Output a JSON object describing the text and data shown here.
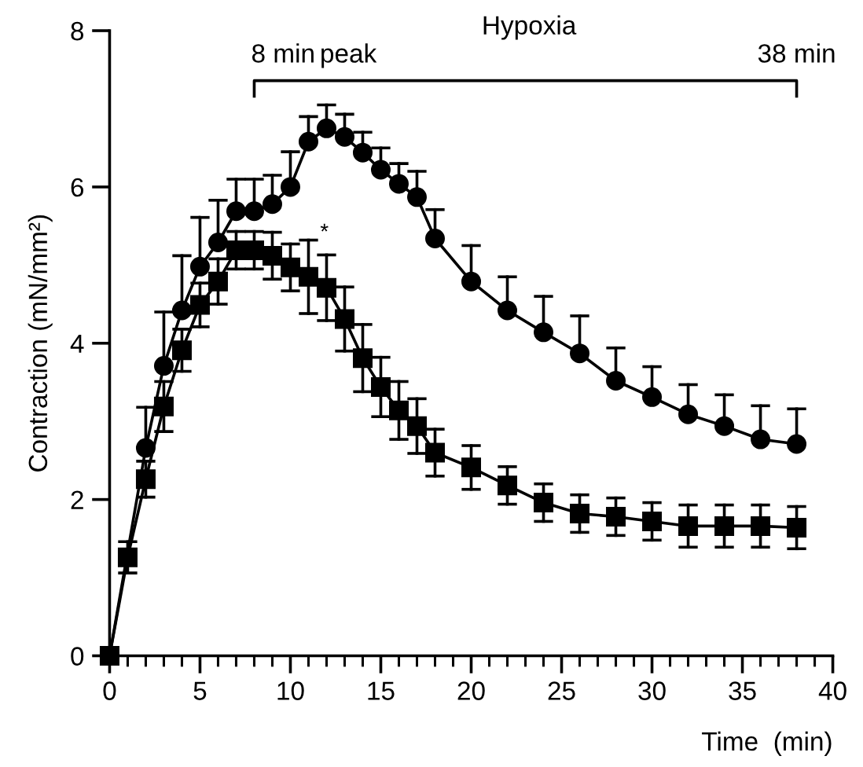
{
  "chart_data": {
    "type": "line",
    "xlabel": "Time  (min)",
    "ylabel": "Contraction (mN/mm²)",
    "xlim": [
      0,
      40
    ],
    "ylim": [
      0,
      8
    ],
    "xticks": [
      0,
      {
        "value": 1,
        "label": null
      },
      {
        "value": 2,
        "label": null
      },
      {
        "value": 3,
        "label": null
      },
      {
        "value": 4,
        "label": null
      },
      5,
      {
        "value": 6,
        "label": null
      },
      {
        "value": 7,
        "label": null
      },
      {
        "value": 8,
        "label": null
      },
      {
        "value": 9,
        "label": null
      },
      10,
      {
        "value": 11,
        "label": null
      },
      {
        "value": 12,
        "label": null
      },
      {
        "value": 13,
        "label": null
      },
      {
        "value": 14,
        "label": null
      },
      15,
      {
        "value": 16,
        "label": null
      },
      {
        "value": 17,
        "label": null
      },
      {
        "value": 18,
        "label": null
      },
      {
        "value": 19,
        "label": null
      },
      20,
      {
        "value": 21,
        "label": null
      },
      {
        "value": 22,
        "label": null
      },
      {
        "value": 23,
        "label": null
      },
      {
        "value": 24,
        "label": null
      },
      25,
      {
        "value": 26,
        "label": null
      },
      {
        "value": 27,
        "label": null
      },
      {
        "value": 28,
        "label": null
      },
      {
        "value": 29,
        "label": null
      },
      30,
      {
        "value": 31,
        "label": null
      },
      {
        "value": 32,
        "label": null
      },
      {
        "value": 33,
        "label": null
      },
      {
        "value": 34,
        "label": null
      },
      35,
      {
        "value": 36,
        "label": null
      },
      {
        "value": 37,
        "label": null
      },
      {
        "value": 38,
        "label": null
      },
      {
        "value": 39,
        "label": null
      },
      40
    ],
    "yticks": [
      0,
      2,
      4,
      6,
      8
    ],
    "grid": false,
    "series": [
      {
        "color": "#000000",
        "marker": "circle",
        "x": [
          0,
          2,
          3,
          4,
          5,
          6,
          7,
          8,
          9,
          10,
          11,
          12,
          13,
          14,
          15,
          16,
          17,
          18,
          20,
          22,
          24,
          26,
          28,
          30,
          32,
          34,
          36,
          38
        ],
        "values": [
          0,
          2.66,
          3.71,
          4.42,
          4.98,
          5.29,
          5.69,
          5.69,
          5.78,
          6.0,
          6.58,
          6.75,
          6.64,
          6.44,
          6.22,
          6.04,
          5.87,
          5.34,
          4.79,
          4.42,
          4.14,
          3.87,
          3.52,
          3.31,
          3.09,
          2.94,
          2.77,
          2.71
        ],
        "errors": [
          null,
          [
            2.66,
            3.18
          ],
          [
            3.71,
            4.4
          ],
          [
            4.42,
            5.12
          ],
          [
            4.98,
            5.61
          ],
          [
            5.29,
            5.83
          ],
          [
            5.69,
            6.1
          ],
          [
            5.69,
            6.1
          ],
          [
            5.78,
            6.15
          ],
          [
            6.0,
            6.45
          ],
          [
            6.58,
            6.9
          ],
          [
            6.75,
            7.05
          ],
          [
            6.64,
            6.93
          ],
          [
            6.44,
            6.7
          ],
          [
            6.22,
            6.5
          ],
          [
            6.04,
            6.3
          ],
          [
            5.87,
            6.2
          ],
          [
            5.34,
            5.71
          ],
          [
            4.79,
            5.25
          ],
          [
            4.42,
            4.85
          ],
          [
            4.14,
            4.6
          ],
          [
            3.87,
            4.35
          ],
          [
            3.52,
            3.94
          ],
          [
            3.31,
            3.7
          ],
          [
            3.09,
            3.47
          ],
          [
            2.94,
            3.34
          ],
          [
            2.77,
            3.2
          ],
          [
            2.71,
            3.16
          ]
        ]
      },
      {
        "color": "#000000",
        "marker": "square",
        "x": [
          0,
          1,
          2,
          3,
          4,
          5,
          6,
          7,
          8,
          9,
          10,
          11,
          12,
          13,
          14,
          15,
          16,
          17,
          18,
          20,
          22,
          24,
          26,
          28,
          30,
          32,
          34,
          36,
          38
        ],
        "values": [
          0,
          1.26,
          2.26,
          3.19,
          3.91,
          4.49,
          4.79,
          5.19,
          5.19,
          5.12,
          4.97,
          4.85,
          4.71,
          4.31,
          3.81,
          3.44,
          3.14,
          2.94,
          2.6,
          2.41,
          2.18,
          1.96,
          1.82,
          1.78,
          1.72,
          1.66,
          1.66,
          1.66,
          1.64
        ],
        "errors": [
          null,
          0.2,
          0.23,
          0.32,
          0.27,
          0.28,
          0.29,
          0.24,
          0.24,
          0.3,
          0.3,
          0.47,
          0.42,
          0.41,
          0.43,
          0.38,
          0.37,
          0.35,
          0.3,
          0.28,
          0.24,
          0.24,
          0.24,
          0.24,
          0.24,
          0.27,
          0.27,
          0.27,
          0.27
        ]
      }
    ],
    "annotations": [
      "Hypoxia",
      "8 min",
      "peak",
      "38 min",
      "*"
    ]
  }
}
